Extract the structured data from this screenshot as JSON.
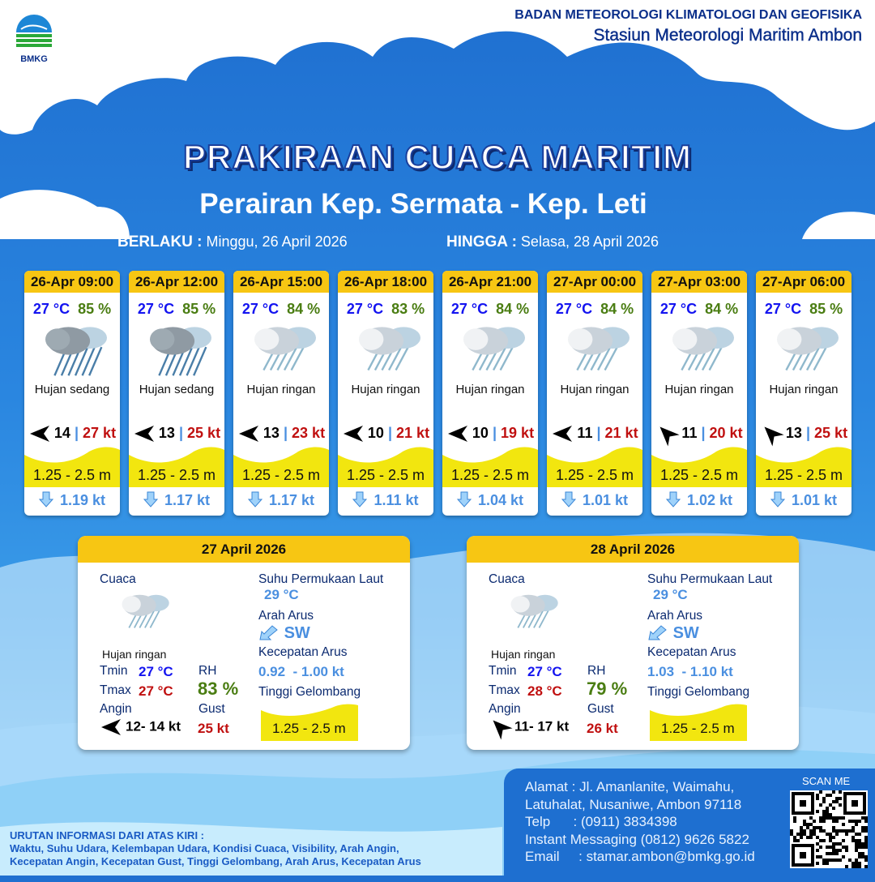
{
  "header": {
    "org": "BADAN METEOROLOGI KLIMATOLOGI DAN GEOFISIKA",
    "station": "Stasiun Meteorologi Maritim Ambon",
    "logo_text": "BMKG"
  },
  "title": "PRAKIRAAN CUACA MARITIM",
  "subtitle": "Perairan Kep. Sermata - Kep. Leti",
  "validity": {
    "from_label": "BERLAKU :",
    "from": "Minggu, 26 April 2026",
    "to_label": "HINGGA :",
    "to": "Selasa, 28 April 2026"
  },
  "colors": {
    "header_yellow": "#f7c613",
    "temp": "#1414f0",
    "humidity": "#4a7d12",
    "gust": "#c01010",
    "current": "#4a8fe0",
    "wave": "#f2e60f"
  },
  "forecasts": [
    {
      "time": "26-Apr 09:00",
      "temp": "27 °C",
      "rh": "85 %",
      "icon": "heavy-rain-icon",
      "weather": "Hujan sedang",
      "wind_dir": "E",
      "wind": "14",
      "gust": "27 kt",
      "wave": "1.25 - 2.5 m",
      "current_dir": "S",
      "current": "1.19 kt"
    },
    {
      "time": "26-Apr 12:00",
      "temp": "27 °C",
      "rh": "85 %",
      "icon": "heavy-rain-icon",
      "weather": "Hujan sedang",
      "wind_dir": "E",
      "wind": "13",
      "gust": "25 kt",
      "wave": "1.25 - 2.5 m",
      "current_dir": "S",
      "current": "1.17 kt"
    },
    {
      "time": "26-Apr 15:00",
      "temp": "27 °C",
      "rh": "84 %",
      "icon": "light-rain-icon",
      "weather": "Hujan ringan",
      "wind_dir": "E",
      "wind": "13",
      "gust": "23 kt",
      "wave": "1.25 - 2.5 m",
      "current_dir": "S",
      "current": "1.17 kt"
    },
    {
      "time": "26-Apr 18:00",
      "temp": "27 °C",
      "rh": "83 %",
      "icon": "light-rain-icon",
      "weather": "Hujan ringan",
      "wind_dir": "E",
      "wind": "10",
      "gust": "21 kt",
      "wave": "1.25 - 2.5 m",
      "current_dir": "S",
      "current": "1.11 kt"
    },
    {
      "time": "26-Apr 21:00",
      "temp": "27 °C",
      "rh": "84 %",
      "icon": "light-rain-icon",
      "weather": "Hujan ringan",
      "wind_dir": "E",
      "wind": "10",
      "gust": "19 kt",
      "wave": "1.25 - 2.5 m",
      "current_dir": "S",
      "current": "1.04 kt"
    },
    {
      "time": "27-Apr 00:00",
      "temp": "27 °C",
      "rh": "84 %",
      "icon": "light-rain-icon",
      "weather": "Hujan ringan",
      "wind_dir": "E",
      "wind": "11",
      "gust": "21 kt",
      "wave": "1.25 - 2.5 m",
      "current_dir": "S",
      "current": "1.01 kt"
    },
    {
      "time": "27-Apr 03:00",
      "temp": "27 °C",
      "rh": "84 %",
      "icon": "light-rain-icon",
      "weather": "Hujan ringan",
      "wind_dir": "SE",
      "wind": "11",
      "gust": "20 kt",
      "wave": "1.25 - 2.5 m",
      "current_dir": "S",
      "current": "1.02 kt"
    },
    {
      "time": "27-Apr 06:00",
      "temp": "27 °C",
      "rh": "85 %",
      "icon": "light-rain-icon",
      "weather": "Hujan ringan",
      "wind_dir": "SE",
      "wind": "13",
      "gust": "25 kt",
      "wave": "1.25 - 2.5 m",
      "current_dir": "S",
      "current": "1.01 kt"
    }
  ],
  "labels": {
    "weather": "Cuaca",
    "sst": "Suhu Permukaan Laut",
    "current_dir": "Arah Arus",
    "current_speed": "Kecepatan Arus",
    "wave": "Tinggi Gelombang",
    "tmin": "Tmin",
    "tmax": "Tmax",
    "rh": "RH",
    "wind": "Angin",
    "gust": "Gust"
  },
  "daily": [
    {
      "date": "27 April 2026",
      "weather": "Hujan ringan",
      "tmin": "27 °C",
      "tmax": "27 °C",
      "rh": "83 %",
      "wind_dir": "E",
      "wind": "12- 14 kt",
      "gust": "25 kt",
      "sst": "29 °C",
      "current_dir": "SW",
      "current_speed": "0.92  - 1.00 kt",
      "wave": "1.25 - 2.5 m"
    },
    {
      "date": "28 April 2026",
      "weather": "Hujan ringan",
      "tmin": "27 °C",
      "tmax": "28 °C",
      "rh": "79 %",
      "wind_dir": "SE",
      "wind": "11- 17 kt",
      "gust": "26 kt",
      "sst": "29 °C",
      "current_dir": "SW",
      "current_speed": "1.03  - 1.10 kt",
      "wave": "1.25 - 2.5 m"
    }
  ],
  "footer": {
    "info_title": "URUTAN INFORMASI DARI ATAS KIRI :",
    "info_line1": "Waktu, Suhu Udara, Kelembapan Udara, Kondisi Cuaca, Visibility, Arah Angin,",
    "info_line2": "Kecepatan Angin, Kecepatan Gust, Tinggi Gelombang, Arah Arus, Kecepatan Arus",
    "address1": "Alamat : Jl. Amanlanite, Waimahu,",
    "address2": "Latuhalat, Nusaniwe, Ambon 97118",
    "phone": "Telp      : (0911) 3834398",
    "im": "Instant Messaging (0812) 9626 5822",
    "email": "Email     : stamar.ambon@bmkg.go.id",
    "scan": "SCAN ME"
  }
}
